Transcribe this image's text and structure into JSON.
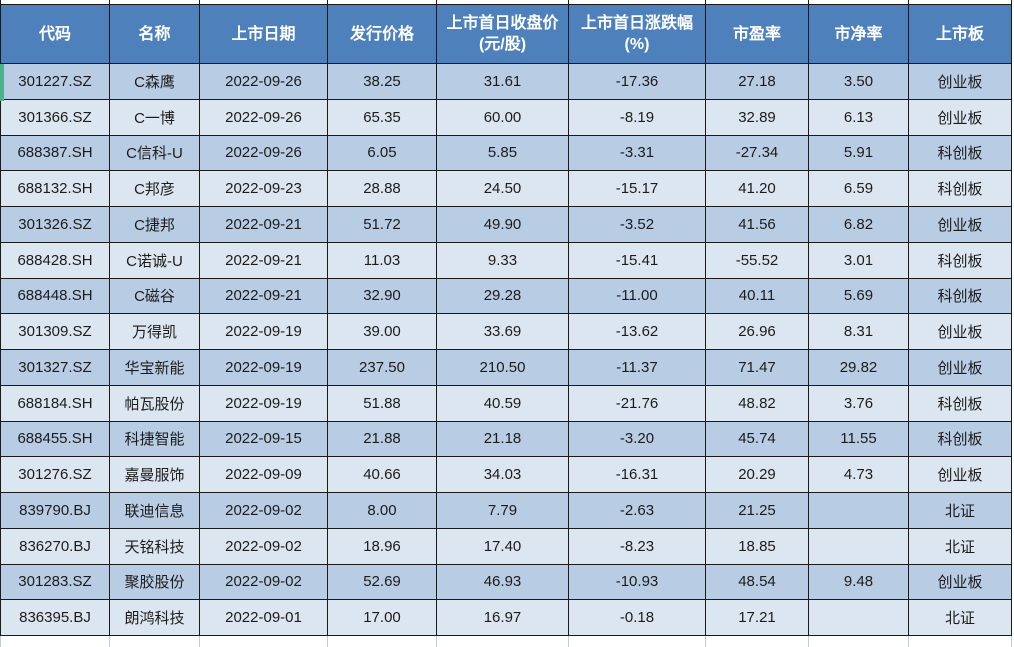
{
  "table": {
    "columns": [
      "代码",
      "名称",
      "上市日期",
      "发行价格",
      "上市首日收盘价\n(元/股)",
      "上市首日涨跌幅\n(%)",
      "市盈率",
      "市净率",
      "上市板"
    ],
    "rows": [
      [
        "301227.SZ",
        "C森鹰",
        "2022-09-26",
        "38.25",
        "31.61",
        "-17.36",
        "27.18",
        "3.50",
        "创业板"
      ],
      [
        "301366.SZ",
        "C一博",
        "2022-09-26",
        "65.35",
        "60.00",
        "-8.19",
        "32.89",
        "6.13",
        "创业板"
      ],
      [
        "688387.SH",
        "C信科-U",
        "2022-09-26",
        "6.05",
        "5.85",
        "-3.31",
        "-27.34",
        "5.91",
        "科创板"
      ],
      [
        "688132.SH",
        "C邦彦",
        "2022-09-23",
        "28.88",
        "24.50",
        "-15.17",
        "41.20",
        "6.59",
        "科创板"
      ],
      [
        "301326.SZ",
        "C捷邦",
        "2022-09-21",
        "51.72",
        "49.90",
        "-3.52",
        "41.56",
        "6.82",
        "创业板"
      ],
      [
        "688428.SH",
        "C诺诚-U",
        "2022-09-21",
        "11.03",
        "9.33",
        "-15.41",
        "-55.52",
        "3.01",
        "科创板"
      ],
      [
        "688448.SH",
        "C磁谷",
        "2022-09-21",
        "32.90",
        "29.28",
        "-11.00",
        "40.11",
        "5.69",
        "科创板"
      ],
      [
        "301309.SZ",
        "万得凯",
        "2022-09-19",
        "39.00",
        "33.69",
        "-13.62",
        "26.96",
        "8.31",
        "创业板"
      ],
      [
        "301327.SZ",
        "华宝新能",
        "2022-09-19",
        "237.50",
        "210.50",
        "-11.37",
        "71.47",
        "29.82",
        "创业板"
      ],
      [
        "688184.SH",
        "帕瓦股份",
        "2022-09-19",
        "51.88",
        "40.59",
        "-21.76",
        "48.82",
        "3.76",
        "科创板"
      ],
      [
        "688455.SH",
        "科捷智能",
        "2022-09-15",
        "21.88",
        "21.18",
        "-3.20",
        "45.74",
        "11.55",
        "科创板"
      ],
      [
        "301276.SZ",
        "嘉曼服饰",
        "2022-09-09",
        "40.66",
        "34.03",
        "-16.31",
        "20.29",
        "4.73",
        "创业板"
      ],
      [
        "839790.BJ",
        "联迪信息",
        "2022-09-02",
        "8.00",
        "7.79",
        "-2.63",
        "21.25",
        "",
        "北证"
      ],
      [
        "836270.BJ",
        "天铭科技",
        "2022-09-02",
        "18.96",
        "17.40",
        "-8.23",
        "18.85",
        "",
        "北证"
      ],
      [
        "301283.SZ",
        "聚胶股份",
        "2022-09-02",
        "52.69",
        "46.93",
        "-10.93",
        "48.54",
        "9.48",
        "创业板"
      ],
      [
        "836395.BJ",
        "朗鸿科技",
        "2022-09-01",
        "17.00",
        "16.97",
        "-0.18",
        "17.21",
        "",
        "北证"
      ]
    ]
  },
  "colors": {
    "header_bg": "#4E80BC",
    "header_text": "#ffffff",
    "row_odd_bg": "#B8CCE4",
    "row_even_bg": "#DCE6F1",
    "cell_text": "#1c1c1c",
    "border_dark": "#1a1a1a",
    "border_light": "#c3cbd8",
    "indicator_green": "#4fb08c"
  }
}
